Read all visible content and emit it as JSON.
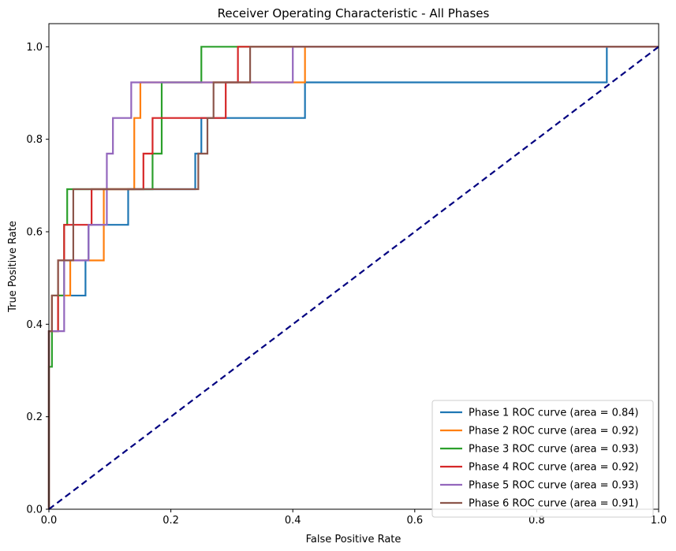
{
  "chart_data": {
    "type": "line",
    "title": "Receiver Operating Characteristic - All Phases",
    "xlabel": "False Positive Rate",
    "ylabel": "True Positive Rate",
    "xlim": [
      0.0,
      1.0
    ],
    "ylim": [
      0.0,
      1.05
    ],
    "xticks": [
      0.0,
      0.2,
      0.4,
      0.6,
      0.8,
      1.0
    ],
    "xtick_labels": [
      "0.0",
      "0.2",
      "0.4",
      "0.6",
      "0.8",
      "1.0"
    ],
    "yticks": [
      0.0,
      0.2,
      0.4,
      0.6,
      0.8,
      1.0
    ],
    "ytick_labels": [
      "0.0",
      "0.2",
      "0.4",
      "0.6",
      "0.8",
      "1.0"
    ],
    "grid": false,
    "legend_position": "lower-right",
    "series": [
      {
        "name": "Phase 1 ROC curve (area = 0.84)",
        "color": "#1f77b4",
        "x": [
          0,
          0,
          0.005,
          0.005,
          0.01,
          0.01,
          0.02,
          0.02,
          0.06,
          0.06,
          0.065,
          0.065,
          0.13,
          0.13,
          0.24,
          0.24,
          0.25,
          0.25,
          0.42,
          0.42,
          0.915,
          0.915,
          1.0
        ],
        "y": [
          0,
          0.385,
          0.385,
          0.462,
          0.462,
          0.462,
          0.462,
          0.462,
          0.462,
          0.538,
          0.538,
          0.615,
          0.615,
          0.692,
          0.692,
          0.769,
          0.769,
          0.846,
          0.846,
          0.923,
          0.923,
          1.0,
          1.0
        ]
      },
      {
        "name": "Phase 2 ROC curve (area = 0.92)",
        "color": "#ff7f0e",
        "x": [
          0,
          0,
          0.005,
          0.005,
          0.035,
          0.035,
          0.09,
          0.09,
          0.14,
          0.14,
          0.15,
          0.15,
          0.42,
          0.42,
          1.0
        ],
        "y": [
          0,
          0.385,
          0.385,
          0.462,
          0.462,
          0.538,
          0.538,
          0.692,
          0.692,
          0.846,
          0.846,
          0.923,
          0.923,
          1.0,
          1.0
        ]
      },
      {
        "name": "Phase 3 ROC curve (area = 0.93)",
        "color": "#2ca02c",
        "x": [
          0,
          0,
          0.005,
          0.005,
          0.015,
          0.015,
          0.025,
          0.025,
          0.03,
          0.03,
          0.17,
          0.17,
          0.185,
          0.185,
          0.25,
          0.25,
          1.0
        ],
        "y": [
          0,
          0.308,
          0.308,
          0.385,
          0.385,
          0.462,
          0.462,
          0.615,
          0.615,
          0.692,
          0.692,
          0.769,
          0.769,
          0.923,
          0.923,
          1.0,
          1.0
        ]
      },
      {
        "name": "Phase 4 ROC curve (area = 0.92)",
        "color": "#d62728",
        "x": [
          0,
          0,
          0.015,
          0.015,
          0.025,
          0.025,
          0.07,
          0.07,
          0.155,
          0.155,
          0.17,
          0.17,
          0.29,
          0.29,
          0.31,
          0.31,
          1.0
        ],
        "y": [
          0,
          0.385,
          0.385,
          0.538,
          0.538,
          0.615,
          0.615,
          0.692,
          0.692,
          0.769,
          0.769,
          0.846,
          0.846,
          0.923,
          0.923,
          1.0,
          1.0
        ]
      },
      {
        "name": "Phase 5 ROC curve (area = 0.93)",
        "color": "#9467bd",
        "x": [
          0,
          0,
          0.01,
          0.01,
          0.025,
          0.025,
          0.065,
          0.065,
          0.095,
          0.095,
          0.105,
          0.105,
          0.135,
          0.135,
          0.4,
          0.4,
          1.0
        ],
        "y": [
          0,
          0.385,
          0.385,
          0.385,
          0.385,
          0.538,
          0.538,
          0.615,
          0.615,
          0.769,
          0.769,
          0.846,
          0.846,
          0.923,
          0.923,
          1.0,
          1.0
        ]
      },
      {
        "name": "Phase 6 ROC curve (area = 0.91)",
        "color": "#8c564b",
        "x": [
          0,
          0,
          0.005,
          0.005,
          0.015,
          0.015,
          0.04,
          0.04,
          0.245,
          0.245,
          0.26,
          0.26,
          0.27,
          0.27,
          0.33,
          0.33,
          1.0
        ],
        "y": [
          0,
          0.385,
          0.385,
          0.462,
          0.462,
          0.538,
          0.538,
          0.692,
          0.692,
          0.769,
          0.769,
          0.846,
          0.846,
          0.923,
          0.923,
          1.0,
          1.0
        ]
      }
    ],
    "reference_line": {
      "x": [
        0,
        1
      ],
      "y": [
        0,
        1
      ],
      "color": "#000080",
      "style": "dashed"
    }
  }
}
